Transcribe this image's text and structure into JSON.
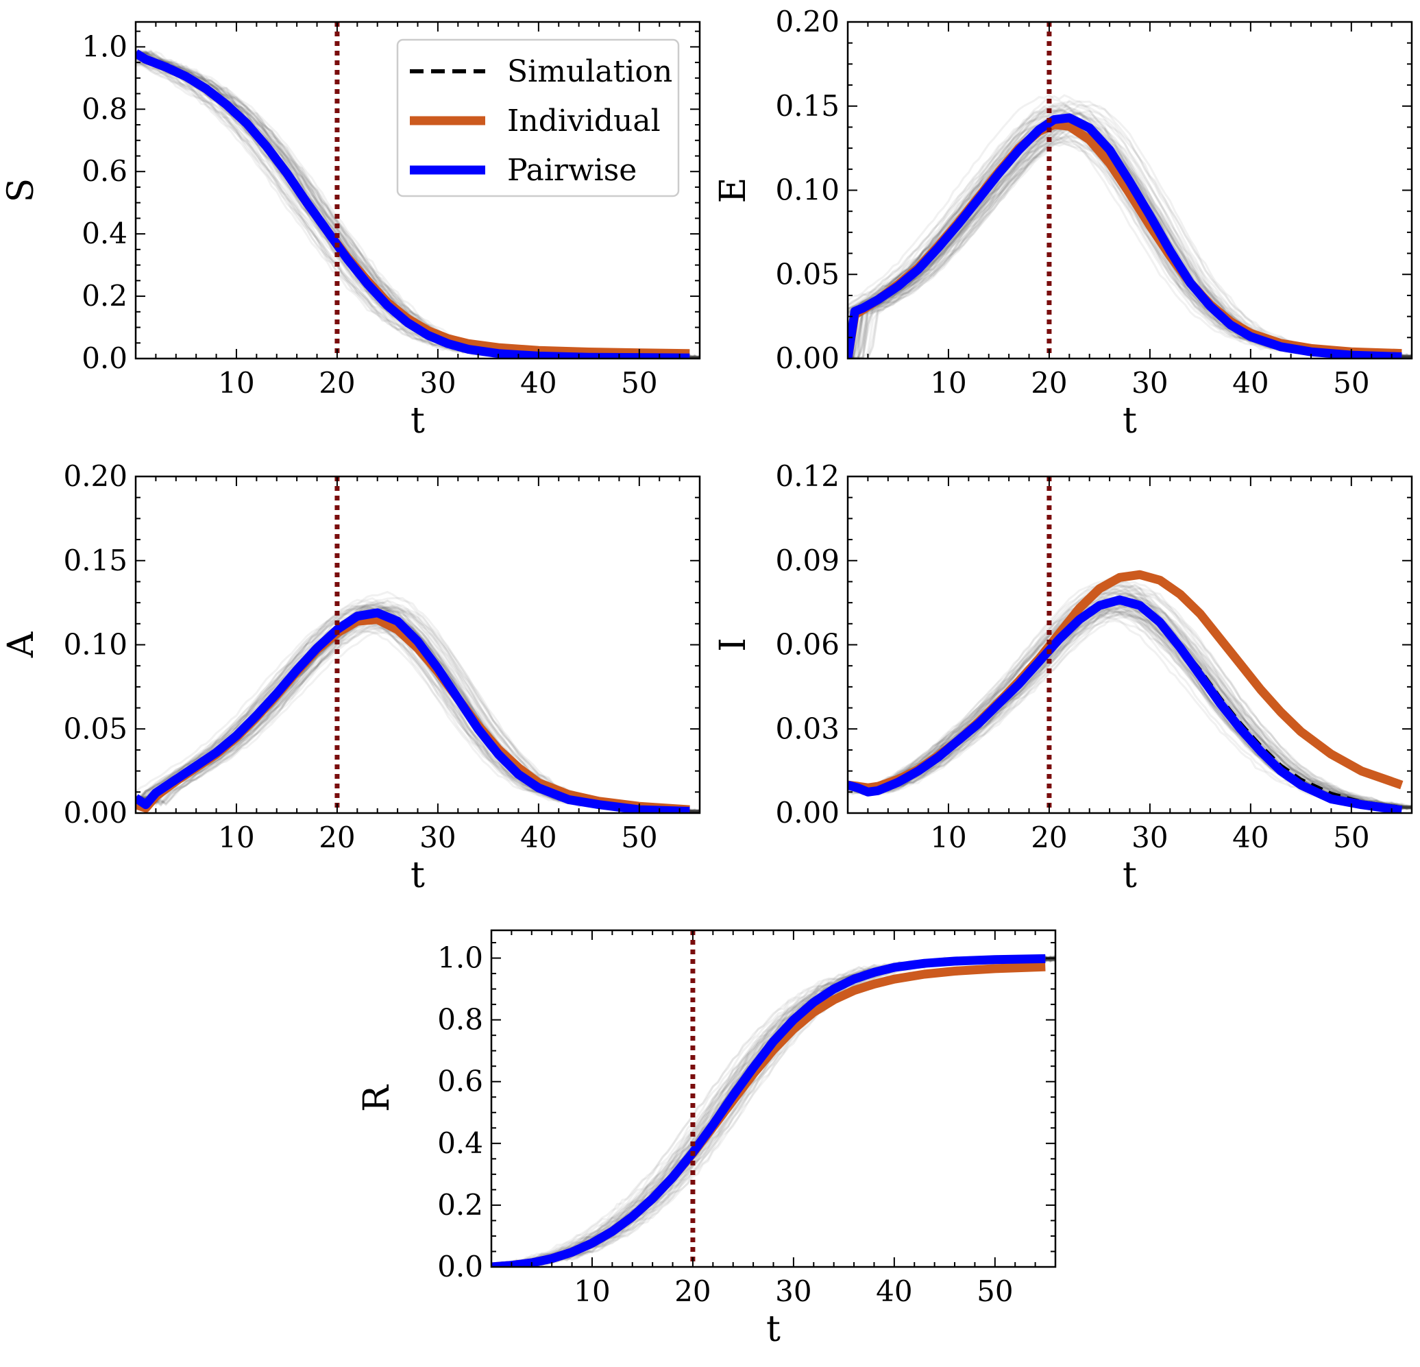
{
  "chart_data": [
    {
      "type": "line",
      "panel": "S",
      "xlabel": "t",
      "ylabel": "S",
      "xlim": [
        0,
        56
      ],
      "ylim": [
        0.0,
        1.08
      ],
      "xticks": [
        10,
        20,
        30,
        40,
        50
      ],
      "xtick_labels": [
        "10",
        "20",
        "30",
        "40",
        "50"
      ],
      "yticks": [
        0.0,
        0.2,
        0.4,
        0.6,
        0.8,
        1.0
      ],
      "ytick_labels": [
        "0.0",
        "0.2",
        "0.4",
        "0.6",
        "0.8",
        "1.0"
      ],
      "intervention_t": 20,
      "legend": true,
      "series": [
        {
          "name": "Simulation",
          "x": [
            0,
            1,
            3,
            5,
            7,
            9,
            11,
            13,
            15,
            17,
            19,
            21,
            23,
            25,
            27,
            29,
            31,
            33,
            36,
            40,
            45,
            50,
            55
          ],
          "y": [
            0.98,
            0.96,
            0.935,
            0.905,
            0.865,
            0.815,
            0.755,
            0.68,
            0.595,
            0.5,
            0.41,
            0.32,
            0.24,
            0.17,
            0.115,
            0.075,
            0.048,
            0.03,
            0.016,
            0.008,
            0.004,
            0.003,
            0.002
          ]
        },
        {
          "name": "Individual",
          "x": [
            0,
            1,
            3,
            5,
            7,
            9,
            11,
            13,
            15,
            17,
            19,
            21,
            23,
            25,
            27,
            29,
            31,
            33,
            36,
            40,
            45,
            50,
            55
          ],
          "y": [
            0.98,
            0.96,
            0.935,
            0.905,
            0.865,
            0.815,
            0.755,
            0.68,
            0.595,
            0.5,
            0.41,
            0.325,
            0.25,
            0.18,
            0.128,
            0.09,
            0.064,
            0.048,
            0.035,
            0.026,
            0.021,
            0.018,
            0.016
          ]
        },
        {
          "name": "Pairwise",
          "x": [
            0,
            1,
            3,
            5,
            7,
            9,
            11,
            13,
            15,
            17,
            19,
            21,
            23,
            25,
            27,
            29,
            31,
            33,
            36,
            40,
            45,
            50,
            55
          ],
          "y": [
            0.98,
            0.96,
            0.935,
            0.905,
            0.865,
            0.815,
            0.755,
            0.68,
            0.595,
            0.5,
            0.41,
            0.32,
            0.24,
            0.17,
            0.115,
            0.075,
            0.048,
            0.03,
            0.016,
            0.008,
            0.004,
            0.003,
            0.002
          ]
        }
      ]
    },
    {
      "type": "line",
      "panel": "E",
      "xlabel": "t",
      "ylabel": "E",
      "xlim": [
        0,
        56
      ],
      "ylim": [
        0.0,
        0.2
      ],
      "xticks": [
        10,
        20,
        30,
        40,
        50
      ],
      "xtick_labels": [
        "10",
        "20",
        "30",
        "40",
        "50"
      ],
      "yticks": [
        0.0,
        0.05,
        0.1,
        0.15,
        0.2
      ],
      "ytick_labels": [
        "0.00",
        "0.05",
        "0.10",
        "0.15",
        "0.20"
      ],
      "intervention_t": 20,
      "legend": false,
      "series": [
        {
          "name": "Simulation",
          "x": [
            0,
            0.7,
            1.5,
            3,
            5,
            7,
            9,
            11,
            13,
            15,
            17,
            19,
            20.5,
            22,
            24,
            26,
            28,
            30,
            32,
            34,
            36,
            38,
            40,
            43,
            46,
            50,
            55
          ],
          "y": [
            0.0,
            0.028,
            0.03,
            0.035,
            0.043,
            0.053,
            0.066,
            0.08,
            0.095,
            0.11,
            0.124,
            0.136,
            0.142,
            0.143,
            0.137,
            0.124,
            0.105,
            0.085,
            0.064,
            0.045,
            0.031,
            0.02,
            0.013,
            0.007,
            0.004,
            0.002,
            0.001
          ]
        },
        {
          "name": "Individual",
          "x": [
            0,
            0.7,
            1.5,
            3,
            5,
            7,
            9,
            11,
            13,
            15,
            17,
            19,
            20.5,
            22,
            24,
            26,
            28,
            30,
            32,
            34,
            36,
            38,
            40,
            43,
            46,
            50,
            55
          ],
          "y": [
            0.0,
            0.026,
            0.029,
            0.035,
            0.044,
            0.054,
            0.067,
            0.081,
            0.096,
            0.111,
            0.125,
            0.135,
            0.139,
            0.138,
            0.13,
            0.116,
            0.098,
            0.079,
            0.061,
            0.045,
            0.032,
            0.022,
            0.015,
            0.009,
            0.006,
            0.004,
            0.003
          ]
        },
        {
          "name": "Pairwise",
          "x": [
            0,
            0.7,
            1.5,
            3,
            5,
            7,
            9,
            11,
            13,
            15,
            17,
            19,
            20.5,
            22,
            24,
            26,
            28,
            30,
            32,
            34,
            36,
            38,
            40,
            43,
            46,
            50,
            55
          ],
          "y": [
            0.0,
            0.028,
            0.03,
            0.035,
            0.043,
            0.053,
            0.066,
            0.08,
            0.095,
            0.11,
            0.124,
            0.136,
            0.142,
            0.143,
            0.137,
            0.124,
            0.105,
            0.085,
            0.064,
            0.045,
            0.031,
            0.02,
            0.013,
            0.007,
            0.004,
            0.002,
            0.001
          ]
        }
      ]
    },
    {
      "type": "line",
      "panel": "A",
      "xlabel": "t",
      "ylabel": "A",
      "xlim": [
        0,
        56
      ],
      "ylim": [
        0.0,
        0.2
      ],
      "xticks": [
        10,
        20,
        30,
        40,
        50
      ],
      "xtick_labels": [
        "10",
        "20",
        "30",
        "40",
        "50"
      ],
      "yticks": [
        0.0,
        0.05,
        0.1,
        0.15,
        0.2
      ],
      "ytick_labels": [
        "0.00",
        "0.05",
        "0.10",
        "0.15",
        "0.20"
      ],
      "intervention_t": 20,
      "legend": false,
      "series": [
        {
          "name": "Simulation",
          "x": [
            0,
            1,
            2,
            4,
            6,
            8,
            10,
            12,
            14,
            16,
            18,
            20,
            22,
            24,
            26,
            28,
            30,
            32,
            34,
            36,
            38,
            40,
            43,
            46,
            50,
            55
          ],
          "y": [
            0.009,
            0.005,
            0.012,
            0.02,
            0.028,
            0.036,
            0.046,
            0.058,
            0.071,
            0.085,
            0.098,
            0.109,
            0.117,
            0.119,
            0.114,
            0.102,
            0.086,
            0.068,
            0.05,
            0.035,
            0.023,
            0.015,
            0.008,
            0.005,
            0.002,
            0.001
          ]
        },
        {
          "name": "Individual",
          "x": [
            0,
            1,
            2,
            4,
            6,
            8,
            10,
            12,
            14,
            16,
            18,
            20,
            22,
            24,
            26,
            28,
            30,
            32,
            34,
            36,
            38,
            40,
            43,
            46,
            50,
            55
          ],
          "y": [
            0.005,
            0.003,
            0.01,
            0.019,
            0.027,
            0.035,
            0.045,
            0.057,
            0.07,
            0.084,
            0.097,
            0.107,
            0.114,
            0.115,
            0.109,
            0.098,
            0.084,
            0.068,
            0.052,
            0.038,
            0.027,
            0.018,
            0.011,
            0.007,
            0.004,
            0.002
          ]
        },
        {
          "name": "Pairwise",
          "x": [
            0,
            1,
            2,
            4,
            6,
            8,
            10,
            12,
            14,
            16,
            18,
            20,
            22,
            24,
            26,
            28,
            30,
            32,
            34,
            36,
            38,
            40,
            43,
            46,
            50,
            55
          ],
          "y": [
            0.009,
            0.005,
            0.012,
            0.02,
            0.028,
            0.036,
            0.046,
            0.058,
            0.071,
            0.085,
            0.098,
            0.109,
            0.117,
            0.119,
            0.114,
            0.102,
            0.086,
            0.068,
            0.05,
            0.035,
            0.023,
            0.015,
            0.008,
            0.005,
            0.002,
            0.001
          ]
        }
      ]
    },
    {
      "type": "line",
      "panel": "I",
      "xlabel": "t",
      "ylabel": "I",
      "xlim": [
        0,
        56
      ],
      "ylim": [
        0.0,
        0.12
      ],
      "xticks": [
        10,
        20,
        30,
        40,
        50
      ],
      "xtick_labels": [
        "10",
        "20",
        "30",
        "40",
        "50"
      ],
      "yticks": [
        0.0,
        0.03,
        0.06,
        0.09,
        0.12
      ],
      "ytick_labels": [
        "0.00",
        "0.03",
        "0.06",
        "0.09",
        "0.12"
      ],
      "intervention_t": 20,
      "legend": false,
      "series": [
        {
          "name": "Simulation",
          "x": [
            0,
            1,
            2,
            3,
            5,
            7,
            9,
            11,
            13,
            15,
            17,
            19,
            21,
            23,
            25,
            27,
            29,
            31,
            33,
            35,
            37,
            39,
            41,
            43,
            45,
            48,
            51,
            55
          ],
          "y": [
            0.01,
            0.009,
            0.0075,
            0.008,
            0.011,
            0.015,
            0.02,
            0.026,
            0.032,
            0.039,
            0.046,
            0.054,
            0.062,
            0.069,
            0.074,
            0.076,
            0.074,
            0.068,
            0.06,
            0.051,
            0.041,
            0.032,
            0.024,
            0.017,
            0.012,
            0.007,
            0.004,
            0.002
          ]
        },
        {
          "name": "Individual",
          "x": [
            0,
            1,
            2,
            3,
            5,
            7,
            9,
            11,
            13,
            15,
            17,
            19,
            21,
            23,
            25,
            27,
            29,
            31,
            33,
            35,
            37,
            39,
            41,
            43,
            45,
            48,
            51,
            55
          ],
          "y": [
            0.01,
            0.0095,
            0.009,
            0.0095,
            0.012,
            0.0155,
            0.0205,
            0.026,
            0.0325,
            0.0395,
            0.047,
            0.055,
            0.064,
            0.073,
            0.08,
            0.084,
            0.085,
            0.083,
            0.078,
            0.071,
            0.062,
            0.053,
            0.044,
            0.036,
            0.029,
            0.021,
            0.015,
            0.01
          ]
        },
        {
          "name": "Pairwise",
          "x": [
            0,
            1,
            2,
            3,
            5,
            7,
            9,
            11,
            13,
            15,
            17,
            19,
            21,
            23,
            25,
            27,
            29,
            31,
            33,
            35,
            37,
            39,
            41,
            43,
            45,
            48,
            51,
            55
          ],
          "y": [
            0.01,
            0.009,
            0.0075,
            0.008,
            0.011,
            0.015,
            0.02,
            0.026,
            0.032,
            0.039,
            0.046,
            0.054,
            0.062,
            0.069,
            0.074,
            0.076,
            0.074,
            0.068,
            0.059,
            0.049,
            0.039,
            0.03,
            0.022,
            0.015,
            0.01,
            0.005,
            0.003,
            0.001
          ]
        }
      ]
    },
    {
      "type": "line",
      "panel": "R",
      "xlabel": "t",
      "ylabel": "R",
      "xlim": [
        0,
        56
      ],
      "ylim": [
        0.0,
        1.09
      ],
      "xticks": [
        10,
        20,
        30,
        40,
        50
      ],
      "xtick_labels": [
        "10",
        "20",
        "30",
        "40",
        "50"
      ],
      "yticks": [
        0.0,
        0.2,
        0.4,
        0.6,
        0.8,
        1.0
      ],
      "ytick_labels": [
        "0.0",
        "0.2",
        "0.4",
        "0.6",
        "0.8",
        "1.0"
      ],
      "intervention_t": 20,
      "legend": false,
      "series": [
        {
          "name": "Simulation",
          "x": [
            0,
            2,
            4,
            6,
            8,
            10,
            12,
            14,
            16,
            18,
            20,
            22,
            24,
            26,
            28,
            30,
            32,
            34,
            36,
            38,
            40,
            43,
            46,
            50,
            55
          ],
          "y": [
            0.0,
            0.005,
            0.013,
            0.027,
            0.048,
            0.077,
            0.115,
            0.163,
            0.221,
            0.29,
            0.37,
            0.46,
            0.555,
            0.645,
            0.73,
            0.8,
            0.857,
            0.9,
            0.932,
            0.954,
            0.97,
            0.983,
            0.99,
            0.995,
            0.998
          ]
        },
        {
          "name": "Individual",
          "x": [
            0,
            2,
            4,
            6,
            8,
            10,
            12,
            14,
            16,
            18,
            20,
            22,
            24,
            26,
            28,
            30,
            32,
            34,
            36,
            38,
            40,
            43,
            46,
            50,
            55
          ],
          "y": [
            0.0,
            0.005,
            0.013,
            0.027,
            0.048,
            0.077,
            0.115,
            0.163,
            0.221,
            0.29,
            0.368,
            0.453,
            0.54,
            0.625,
            0.703,
            0.77,
            0.825,
            0.865,
            0.895,
            0.916,
            0.932,
            0.948,
            0.958,
            0.966,
            0.972
          ]
        },
        {
          "name": "Pairwise",
          "x": [
            0,
            2,
            4,
            6,
            8,
            10,
            12,
            14,
            16,
            18,
            20,
            22,
            24,
            26,
            28,
            30,
            32,
            34,
            36,
            38,
            40,
            43,
            46,
            50,
            55
          ],
          "y": [
            0.0,
            0.005,
            0.013,
            0.027,
            0.048,
            0.077,
            0.115,
            0.163,
            0.221,
            0.29,
            0.37,
            0.46,
            0.555,
            0.645,
            0.73,
            0.8,
            0.857,
            0.9,
            0.932,
            0.954,
            0.97,
            0.983,
            0.99,
            0.995,
            0.998
          ]
        }
      ]
    }
  ],
  "legend": {
    "entries": [
      {
        "label": "Simulation",
        "color": "#000000",
        "style": "dashed"
      },
      {
        "label": "Individual",
        "color": "#cc5a1e",
        "style": "solid"
      },
      {
        "label": "Pairwise",
        "color": "#0000ff",
        "style": "solid"
      }
    ]
  },
  "colors": {
    "simulation": "#000000",
    "individual": "#cc5a1e",
    "pairwise": "#0000ff",
    "intervention": "#7a0d0d",
    "ensemble": "#333333"
  }
}
